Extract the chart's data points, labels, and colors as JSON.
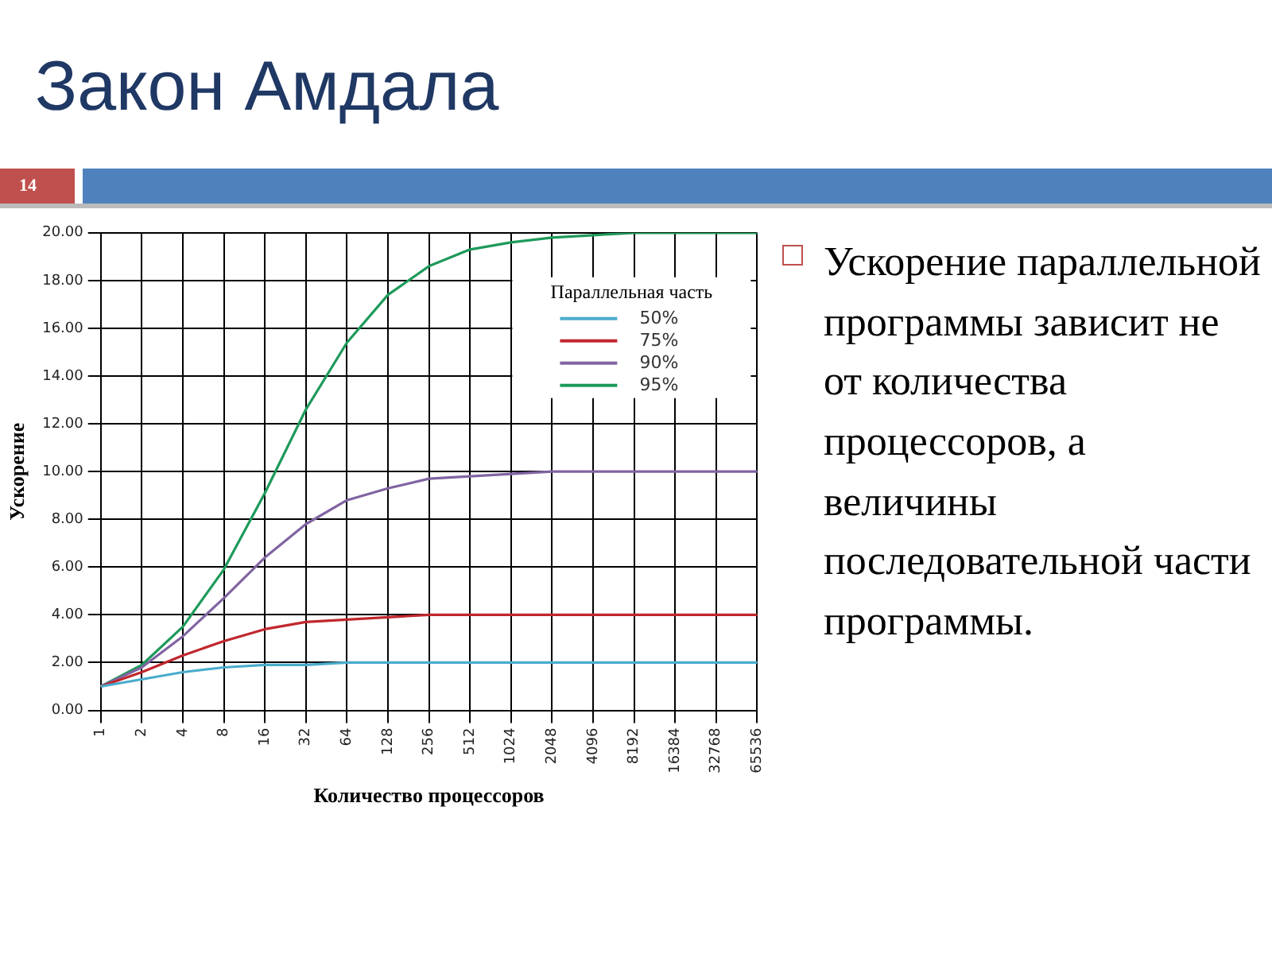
{
  "chart_data": {
    "type": "line",
    "title": "Закон Амдала",
    "xlabel": "Количество процессоров",
    "ylabel": "Ускорение",
    "legend_title": "Параллельная часть",
    "categories": [
      "1",
      "2",
      "4",
      "8",
      "16",
      "32",
      "64",
      "128",
      "256",
      "512",
      "1024",
      "2048",
      "4096",
      "8192",
      "16384",
      "32768",
      "65536"
    ],
    "series": [
      {
        "name": "50%",
        "color": "#4aaccc",
        "values": [
          1,
          1.3,
          1.6,
          1.8,
          1.9,
          1.9,
          2,
          2,
          2,
          2,
          2,
          2,
          2,
          2,
          2,
          2,
          2
        ]
      },
      {
        "name": "75%",
        "color": "#c0272d",
        "values": [
          1,
          1.6,
          2.3,
          2.9,
          3.4,
          3.7,
          3.8,
          3.9,
          4,
          4,
          4,
          4,
          4,
          4,
          4,
          4,
          4
        ]
      },
      {
        "name": "90%",
        "color": "#8064a2",
        "values": [
          1,
          1.8,
          3.1,
          4.7,
          6.4,
          7.8,
          8.8,
          9.3,
          9.7,
          9.8,
          9.9,
          10,
          10,
          10,
          10,
          10,
          10
        ]
      },
      {
        "name": "95%",
        "color": "#1e9a5a",
        "values": [
          1,
          1.9,
          3.5,
          5.9,
          9.1,
          12.6,
          15.4,
          17.4,
          18.6,
          19.3,
          19.6,
          19.8,
          19.9,
          20,
          20,
          20,
          20
        ]
      }
    ],
    "ylim": [
      0,
      20
    ],
    "yticks": [
      {
        "value": 0,
        "label": "0.00"
      },
      {
        "value": 2,
        "label": "2.00"
      },
      {
        "value": 4,
        "label": "4.00"
      },
      {
        "value": 6,
        "label": "6.00"
      },
      {
        "value": 8,
        "label": "8.00"
      },
      {
        "value": 10,
        "label": "10.00"
      },
      {
        "value": 12,
        "label": "12.00"
      },
      {
        "value": 14,
        "label": "14.00"
      },
      {
        "value": 16,
        "label": "16.00"
      },
      {
        "value": 18,
        "label": "18.00"
      },
      {
        "value": 20,
        "label": "20.00"
      }
    ],
    "grid": true,
    "legend": "top right",
    "marker": "none",
    "line_style": "solid",
    "annotations": [
      "14",
      "Ускорение параллельной программы зависит не от количества процессоров, а величины последовательной части программы."
    ]
  }
}
